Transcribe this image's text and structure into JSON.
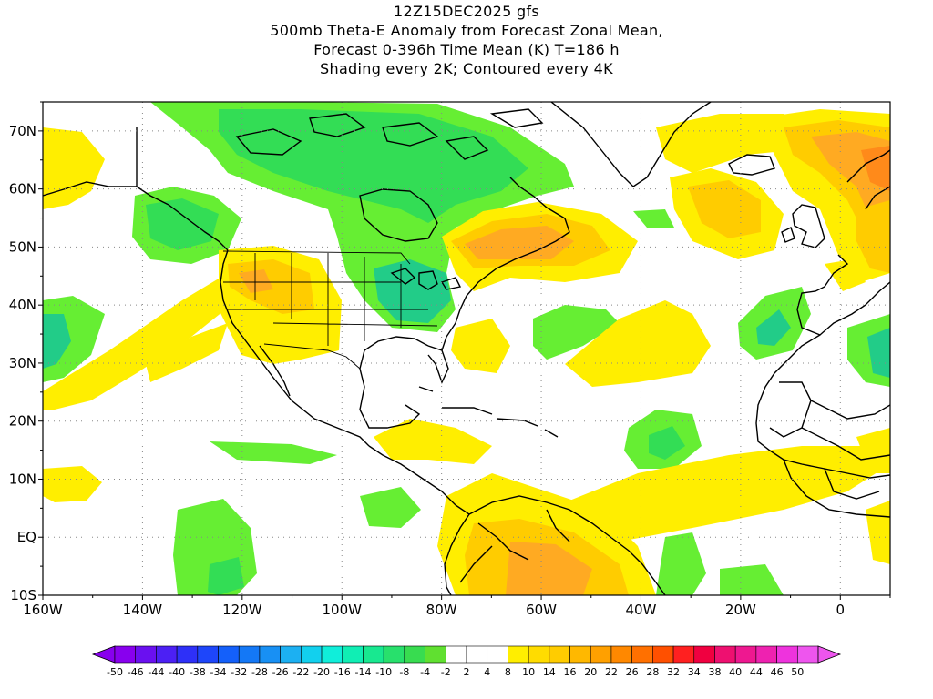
{
  "title": {
    "line1": "12Z15DEC2025 gfs",
    "line2": "500mb Theta-E Anomaly from Forecast Zonal Mean,",
    "line3": "Forecast 0-396h Time Mean (K) T=186 h",
    "line4": "Shading every 2K; Contoured every 4K"
  },
  "map": {
    "lon_range": [
      -160,
      10
    ],
    "lat_range": [
      -10,
      75
    ],
    "lat_ticks": [
      "70N",
      "60N",
      "50N",
      "40N",
      "30N",
      "20N",
      "10N",
      "EQ",
      "10S"
    ],
    "lat_values": [
      70,
      60,
      50,
      40,
      30,
      20,
      10,
      0,
      -10
    ],
    "lon_ticks": [
      "160W",
      "140W",
      "120W",
      "100W",
      "80W",
      "60W",
      "40W",
      "20W",
      "0"
    ],
    "lon_values": [
      -160,
      -140,
      -120,
      -100,
      -80,
      -60,
      -40,
      -20,
      0
    ],
    "grid": "dotted"
  },
  "colors": {
    "green_light": "#66ee33",
    "green_mid": "#33dd55",
    "green_teal": "#22cc88",
    "yellow": "#ffee00",
    "gold": "#ffcc00",
    "orange": "#ffaa22",
    "orange_dark": "#ff8a1a",
    "coast": "#000000"
  },
  "colorbar": {
    "labels": [
      "-50",
      "-46",
      "-44",
      "-40",
      "-38",
      "-34",
      "-32",
      "-28",
      "-26",
      "-22",
      "-20",
      "-16",
      "-14",
      "-10",
      "-8",
      "-4",
      "-2",
      "2",
      "4",
      "8",
      "10",
      "14",
      "16",
      "20",
      "22",
      "26",
      "28",
      "32",
      "34",
      "38",
      "40",
      "44",
      "46",
      "50"
    ],
    "colors": [
      "#8800ee",
      "#6a10f0",
      "#4c20f4",
      "#2e30f8",
      "#1e46fa",
      "#1460fa",
      "#1478f6",
      "#1890f4",
      "#1cb0f2",
      "#12d0ee",
      "#10eeda",
      "#10eeb4",
      "#18e890",
      "#28e06c",
      "#38dc50",
      "#60e030",
      "#ffffff",
      "#ffffff",
      "#ffffff",
      "#ffee00",
      "#ffdc00",
      "#ffcc00",
      "#ffb800",
      "#ffa000",
      "#ff8800",
      "#ff7000",
      "#ff5000",
      "#ff2020",
      "#f00040",
      "#ee1070",
      "#ee1890",
      "#ee22b0",
      "#ee33dd",
      "#ee55ee"
    ]
  }
}
